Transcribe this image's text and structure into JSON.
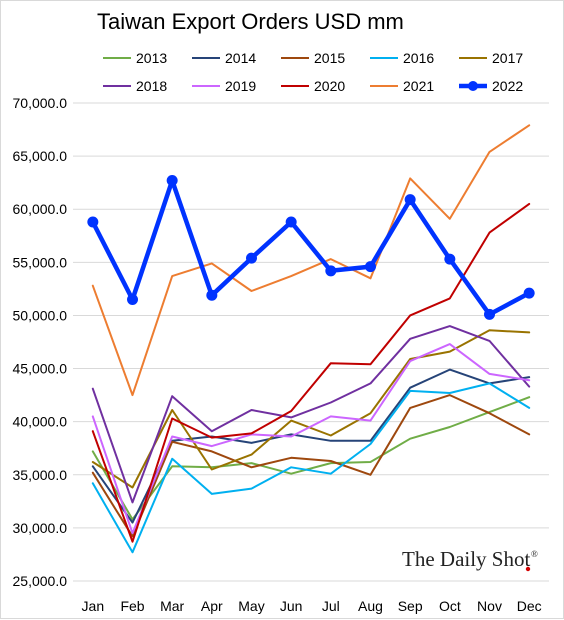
{
  "chart_data": {
    "type": "line",
    "title": "Taiwan Export Orders USD mm",
    "xlabel": "",
    "ylabel": "",
    "categories": [
      "Jan",
      "Feb",
      "Mar",
      "Apr",
      "May",
      "Jun",
      "Jul",
      "Aug",
      "Sep",
      "Oct",
      "Nov",
      "Dec"
    ],
    "ylim": [
      25000,
      70000
    ],
    "yticks": [
      "25,000.0",
      "30,000.0",
      "35,000.0",
      "40,000.0",
      "45,000.0",
      "50,000.0",
      "55,000.0",
      "60,000.0",
      "65,000.0",
      "70,000.0"
    ],
    "grid": "horizontal",
    "legend_position": "top",
    "series": [
      {
        "name": "2013",
        "color": "#70ad47",
        "values": [
          37200,
          30800,
          35800,
          35700,
          36100,
          35100,
          36100,
          36200,
          38400,
          39500,
          40900,
          42300
        ]
      },
      {
        "name": "2014",
        "color": "#264478",
        "values": [
          35800,
          30500,
          38200,
          38600,
          38000,
          38800,
          38200,
          38200,
          43200,
          44900,
          43600,
          44200
        ]
      },
      {
        "name": "2015",
        "color": "#9e480e",
        "values": [
          35200,
          29200,
          38100,
          37200,
          35700,
          36600,
          36300,
          35000,
          41300,
          42500,
          40800,
          38800
        ]
      },
      {
        "name": "2016",
        "color": "#00b0f0",
        "values": [
          34200,
          27700,
          36500,
          33200,
          33700,
          35700,
          35100,
          37900,
          42900,
          42700,
          43600,
          41300
        ]
      },
      {
        "name": "2017",
        "color": "#997300",
        "values": [
          36200,
          33800,
          41100,
          35500,
          36900,
          40100,
          38700,
          40800,
          45900,
          46600,
          48600,
          48400
        ]
      },
      {
        "name": "2018",
        "color": "#7030a0",
        "values": [
          43100,
          32400,
          42400,
          39100,
          41100,
          40400,
          41800,
          43600,
          47800,
          49000,
          47600,
          43300
        ]
      },
      {
        "name": "2019",
        "color": "#cc66ff",
        "values": [
          40500,
          29500,
          38600,
          37700,
          38800,
          38600,
          40500,
          40100,
          45700,
          47300,
          44500,
          43900
        ]
      },
      {
        "name": "2020",
        "color": "#c00000",
        "values": [
          39100,
          28700,
          40300,
          38500,
          38900,
          41000,
          45500,
          45400,
          50000,
          51600,
          57800,
          60500
        ]
      },
      {
        "name": "2021",
        "color": "#ed7d31",
        "values": [
          52800,
          42500,
          53700,
          54900,
          52300,
          53700,
          55300,
          53500,
          62900,
          59100,
          65400,
          67900
        ]
      },
      {
        "name": "2022",
        "color": "#0033ff",
        "values": [
          58800,
          51500,
          62700,
          51900,
          55400,
          58800,
          54200,
          54600,
          60900,
          55300,
          50100,
          52100
        ]
      }
    ]
  },
  "watermark": {
    "text": "The Daily Shot",
    "mark": "®"
  }
}
